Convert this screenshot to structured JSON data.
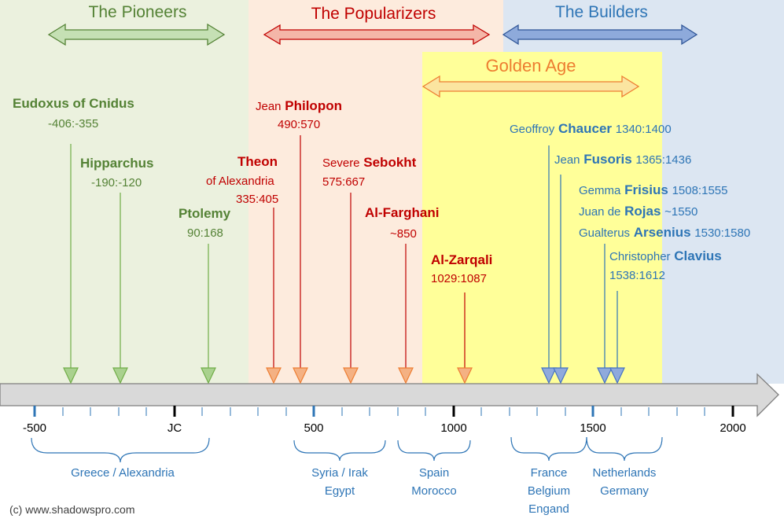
{
  "eras": {
    "pioneers": "The Pioneers",
    "popularizers": "The Popularizers",
    "builders": "The Builders",
    "golden_age": "Golden Age"
  },
  "people": {
    "eudoxus": {
      "name": "Eudoxus of Cnidus",
      "dates": "-406:-355"
    },
    "hipparchus": {
      "name": "Hipparchus",
      "dates": "-190:-120"
    },
    "ptolemy": {
      "name": "Ptolemy",
      "dates": "90:168"
    },
    "theon": {
      "name": "Theon",
      "sub": "of Alexandria",
      "dates": "335:405"
    },
    "philopon": {
      "first": "Jean",
      "name": "Philopon",
      "dates": "490:570"
    },
    "sebokht": {
      "first": "Severe",
      "name": "Sebokht",
      "dates": "575:667"
    },
    "farghani": {
      "name": "Al-Farghani",
      "dates": "~850"
    },
    "zarqali": {
      "name": "Al-Zarqali",
      "dates": "1029:1087"
    },
    "chaucer": {
      "first": "Geoffroy",
      "name": "Chaucer",
      "dates": "1340:1400"
    },
    "fusoris": {
      "first": "Jean",
      "name": "Fusoris",
      "dates": "1365:1436"
    },
    "frisius": {
      "first": "Gemma",
      "name": "Frisius",
      "dates": "1508:1555"
    },
    "rojas": {
      "first": "Juan de",
      "name": "Rojas",
      "dates": "~1550"
    },
    "arsenius": {
      "first": "Gualterus",
      "name": "Arsenius",
      "dates": "1530:1580"
    },
    "clavius": {
      "first": "Christopher",
      "name": "Clavius",
      "dates": "1538:1612"
    }
  },
  "axis": {
    "ticks": [
      "-500",
      "JC",
      "500",
      "1000",
      "1500",
      "2000"
    ]
  },
  "regions": {
    "greece": "Greece / Alexandria",
    "syria_l1": "Syria / Irak",
    "syria_l2": "Egypt",
    "spain_l1": "Spain",
    "spain_l2": "Morocco",
    "france_l1": "France",
    "france_l2": "Belgium",
    "france_l3": "Engand",
    "neth_l1": "Netherlands",
    "neth_l2": "Germany"
  },
  "copyright": "(c) www.shadowspro.com",
  "colors": {
    "pioneers_bg": "#ebf1de",
    "popularizers_bg": "#fdebdd",
    "builders_bg": "#dce6f2",
    "golden_bg": "#ffff99",
    "green": "#548235",
    "red": "#c00000",
    "blue": "#2e75b6",
    "orange": "#ed7d31"
  }
}
